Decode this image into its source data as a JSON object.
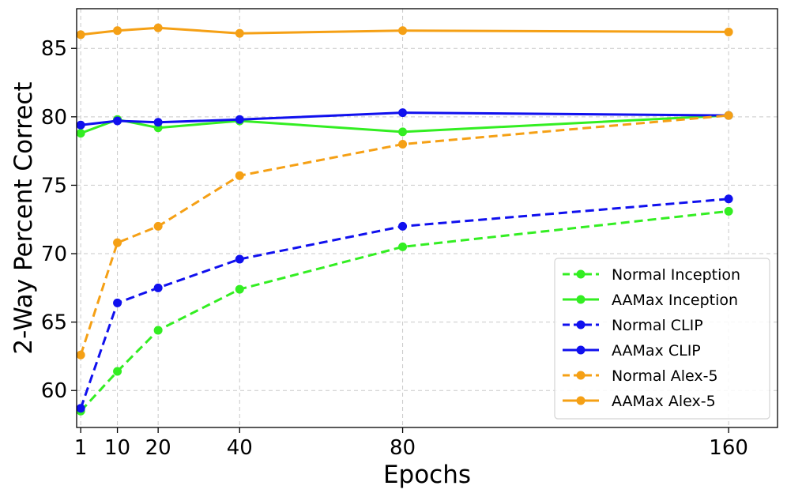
{
  "chart_data": {
    "type": "line",
    "title": "",
    "xlabel": "Epochs",
    "ylabel": "2-Way Percent Correct",
    "x": [
      1,
      10,
      20,
      40,
      80,
      160
    ],
    "xticks": [
      1,
      10,
      20,
      40,
      80,
      160
    ],
    "yticks": [
      60,
      65,
      70,
      75,
      80,
      85
    ],
    "xlim": [
      0,
      172
    ],
    "ylim": [
      57.3,
      87.9
    ],
    "grid": true,
    "legend_position": "lower-right",
    "series": [
      {
        "name": "Normal Inception",
        "color": "#33ee22",
        "dashed": true,
        "values": [
          58.5,
          61.4,
          64.4,
          67.4,
          70.5,
          73.1
        ]
      },
      {
        "name": "AAMax Inception",
        "color": "#33ee22",
        "dashed": false,
        "values": [
          78.8,
          79.8,
          79.2,
          79.7,
          78.9,
          80.1
        ]
      },
      {
        "name": "Normal CLIP",
        "color": "#1010ee",
        "dashed": true,
        "values": [
          58.7,
          66.4,
          67.5,
          69.6,
          72.0,
          74.0
        ]
      },
      {
        "name": "AAMax CLIP",
        "color": "#1010ee",
        "dashed": false,
        "values": [
          79.4,
          79.7,
          79.6,
          79.8,
          80.3,
          80.1
        ]
      },
      {
        "name": "Normal Alex-5",
        "color": "#f5a015",
        "dashed": true,
        "values": [
          62.6,
          70.8,
          72.0,
          75.7,
          78.0,
          80.1
        ]
      },
      {
        "name": "AAMax Alex-5",
        "color": "#f5a015",
        "dashed": false,
        "values": [
          86.0,
          86.3,
          86.5,
          86.1,
          86.3,
          86.2
        ]
      }
    ]
  }
}
